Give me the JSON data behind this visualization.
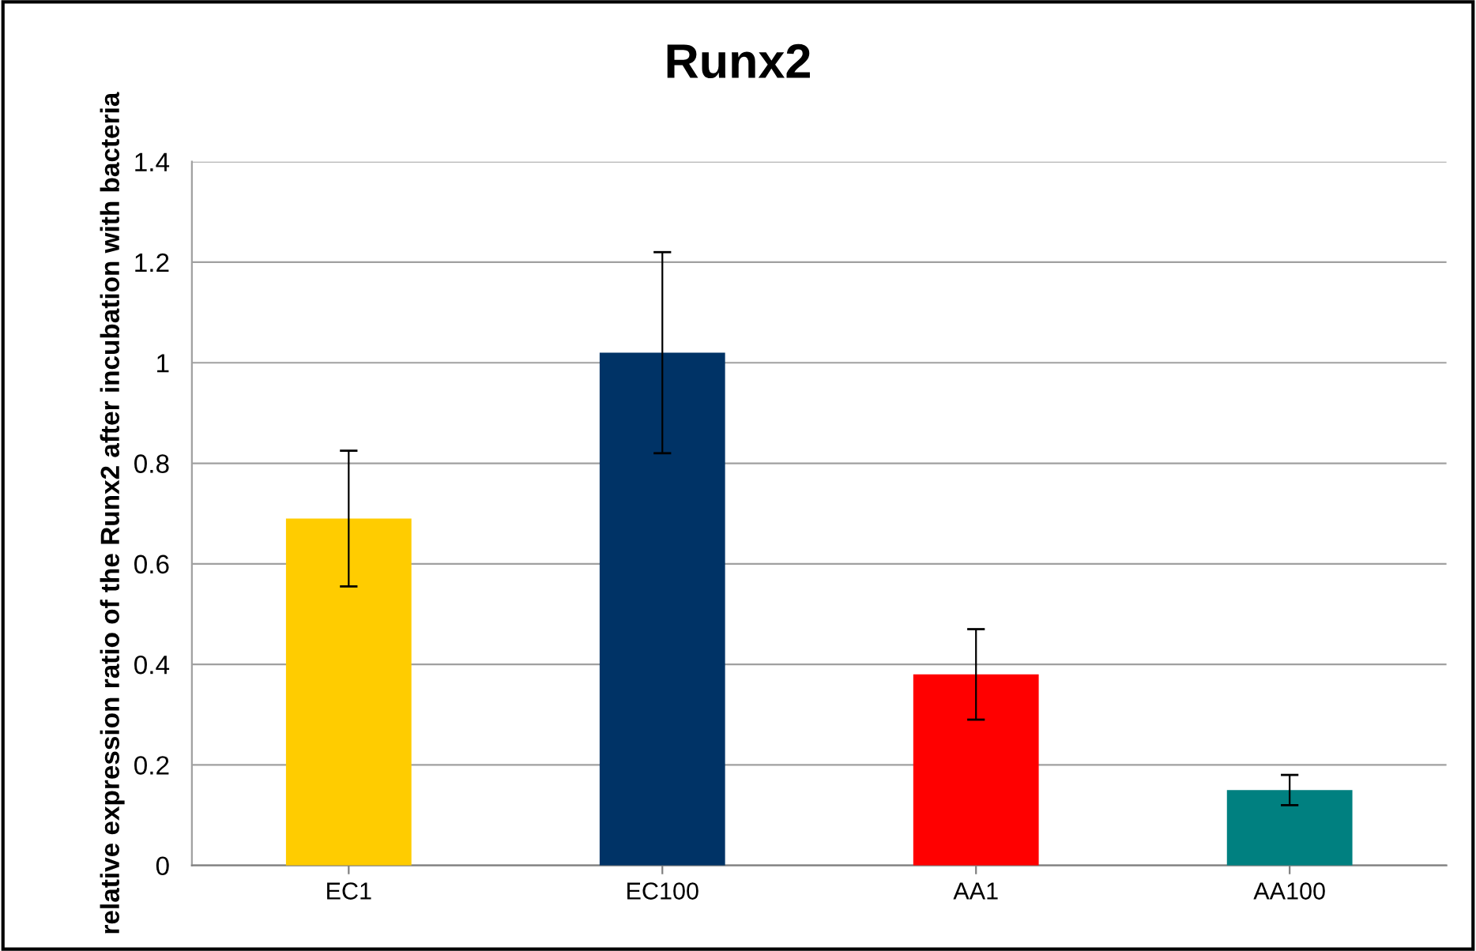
{
  "chart_data": {
    "type": "bar",
    "title": "Runx2",
    "ylabel": "relative expression ratio of the Runx2 after incubation with bacteria",
    "categories": [
      "EC1",
      "EC100",
      "AA1",
      "AA100"
    ],
    "values": [
      0.69,
      1.02,
      0.38,
      0.15
    ],
    "errors": [
      0.135,
      0.2,
      0.09,
      0.03
    ],
    "colors": [
      "#ffcc00",
      "#003366",
      "#ff0000",
      "#008080"
    ],
    "ylim": [
      0,
      1.4
    ],
    "yticks": [
      0,
      0.2,
      0.4,
      0.6,
      0.8,
      1,
      1.2,
      1.4
    ],
    "grid": "y"
  }
}
